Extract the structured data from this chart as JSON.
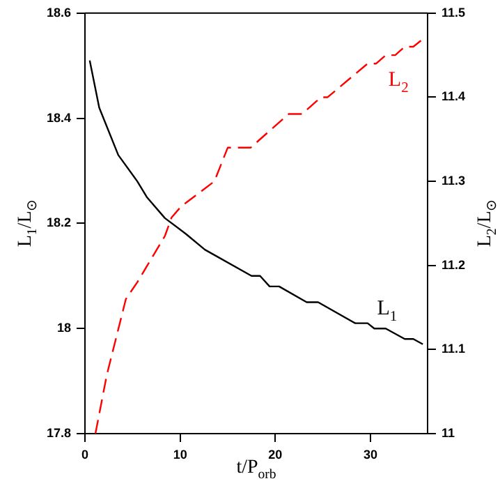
{
  "chart_data": {
    "type": "line",
    "xlabel": "t/P$_{orb}$",
    "ylabel": "L$_{1}$/L$_{⊙}$",
    "y2label": "L$_{2}$/L$_{⊙}$",
    "xlim": [
      0,
      36
    ],
    "xticks": [
      0,
      10,
      20,
      30
    ],
    "ylim": [
      17.8,
      18.6
    ],
    "yticks": [
      17.8,
      18,
      18.2,
      18.4,
      18.6
    ],
    "y2lim": [
      11,
      11.5
    ],
    "y2ticks": [
      11,
      11.1,
      11.2,
      11.3,
      11.4,
      11.5
    ],
    "grid": false,
    "legend": false,
    "marker": "none",
    "series": [
      {
        "name": "L$_{1}$",
        "color": "#000000",
        "line_style": "solid",
        "x": [
          0.5,
          1.5,
          3.5,
          5.5,
          6.5,
          8.4,
          10.6,
          12.6,
          17.5,
          18.4,
          19.4,
          20.4,
          23.3,
          24.5,
          28.4,
          29.7,
          30.4,
          31.6,
          33.6,
          34.5,
          35.5
        ],
        "values": [
          18.51,
          18.42,
          18.33,
          18.28,
          18.25,
          18.21,
          18.18,
          18.15,
          18.1,
          18.1,
          18.08,
          18.08,
          18.05,
          18.05,
          18.01,
          18.01,
          18.0,
          18.0,
          17.98,
          17.98,
          17.97
        ]
      },
      {
        "name": "L$_{2}$",
        "color": "#ff0000",
        "line_style": "dashed",
        "axis": "y2",
        "x": [
          1.1,
          2.3,
          4.3,
          5.5,
          8.4,
          9.1,
          10.1,
          13.6,
          15,
          17.4,
          21.4,
          22.8,
          24.8,
          25.5,
          29.7,
          30.6,
          31.6,
          32.6,
          33.6,
          34.5,
          35.6
        ],
        "values": [
          11.0,
          11.07,
          11.16,
          11.18,
          11.235,
          11.257,
          11.27,
          11.3,
          11.34,
          11.34,
          11.38,
          11.38,
          11.4,
          11.4,
          11.44,
          11.44,
          11.45,
          11.45,
          11.46,
          11.46,
          11.47
        ]
      }
    ]
  }
}
